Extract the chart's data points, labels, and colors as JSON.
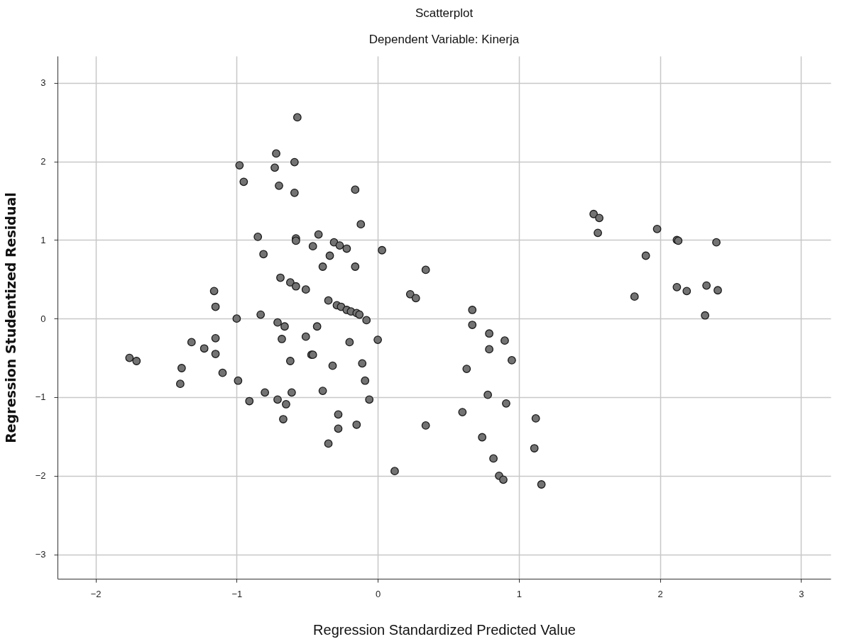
{
  "chart_data": {
    "type": "scatter",
    "title": "Scatterplot",
    "subtitle": "Dependent Variable: Kinerja",
    "xlabel": "Regression Standardized Predicted Value",
    "ylabel": "Regression Studentized Residual",
    "x": [
      -1.76,
      -1.71,
      -1.4,
      -1.39,
      -1.32,
      -1.23,
      -1.16,
      -1.15,
      -1.15,
      -1.15,
      -1.1,
      -1.0,
      -0.99,
      -0.98,
      -0.95,
      -0.91,
      -0.85,
      -0.83,
      -0.81,
      -0.8,
      -0.72,
      -0.73,
      -0.7,
      -0.71,
      -0.71,
      -0.69,
      -0.68,
      -0.66,
      -0.65,
      -0.67,
      -0.62,
      -0.62,
      -0.61,
      -0.59,
      -0.59,
      -0.58,
      -0.58,
      -0.57,
      -0.58,
      -0.51,
      -0.51,
      -0.47,
      -0.46,
      -0.46,
      -0.43,
      -0.42,
      -0.39,
      -0.39,
      -0.35,
      -0.35,
      -0.34,
      -0.32,
      -0.31,
      -0.29,
      -0.27,
      -0.28,
      -0.28,
      -0.26,
      -0.22,
      -0.22,
      -0.2,
      -0.19,
      -0.16,
      -0.16,
      -0.15,
      -0.15,
      -0.13,
      -0.12,
      -0.11,
      -0.09,
      -0.08,
      -0.06,
      0.0,
      0.03,
      0.12,
      0.23,
      0.27,
      0.34,
      0.34,
      0.67,
      0.67,
      0.79,
      0.9,
      0.79,
      0.95,
      0.63,
      0.78,
      0.91,
      0.6,
      1.12,
      0.74,
      1.11,
      0.82,
      0.86,
      0.89,
      1.16,
      1.53,
      1.57,
      1.56,
      1.82,
      1.9,
      1.98,
      2.12,
      2.13,
      2.12,
      2.19,
      2.33,
      2.32,
      2.4,
      2.41
    ],
    "values": [
      -0.5,
      -0.54,
      -0.83,
      -0.63,
      -0.3,
      -0.38,
      0.35,
      0.15,
      -0.25,
      -0.45,
      -0.69,
      0.0,
      -0.79,
      1.95,
      1.74,
      -1.05,
      1.04,
      0.05,
      0.82,
      -0.94,
      2.1,
      1.92,
      1.69,
      -0.05,
      -1.03,
      0.52,
      -0.26,
      -0.1,
      -1.09,
      -1.28,
      0.46,
      -0.54,
      -0.94,
      1.99,
      1.6,
      1.02,
      0.99,
      2.56,
      0.41,
      0.37,
      -0.23,
      -0.46,
      -0.46,
      0.92,
      -0.1,
      1.07,
      0.66,
      -0.92,
      0.23,
      -1.59,
      0.8,
      -0.6,
      0.97,
      0.17,
      0.93,
      -1.22,
      -1.4,
      0.15,
      0.11,
      0.89,
      -0.3,
      0.09,
      1.64,
      0.66,
      0.07,
      -1.35,
      0.05,
      1.2,
      -0.57,
      -0.79,
      -0.02,
      -1.03,
      -0.27,
      0.87,
      -1.94,
      0.31,
      0.26,
      -1.36,
      0.62,
      0.11,
      -0.08,
      -0.19,
      -0.28,
      -0.39,
      -0.53,
      -0.64,
      -0.97,
      -1.08,
      -1.19,
      -1.27,
      -1.51,
      -1.65,
      -1.78,
      -2.0,
      -2.05,
      -2.11,
      1.33,
      1.28,
      1.09,
      0.28,
      0.8,
      1.14,
      1.0,
      0.99,
      0.4,
      0.35,
      0.42,
      0.04,
      0.97,
      0.36
    ],
    "color": "#737373",
    "marker": "circle",
    "grid": true,
    "xlim": [
      -2.27,
      3.21
    ],
    "xticks": [
      -2,
      -1,
      0,
      1,
      2,
      3
    ],
    "ylim": [
      -3.31,
      3.34
    ],
    "yticks": [
      -3,
      -2,
      -1,
      0,
      1,
      2,
      3
    ]
  }
}
